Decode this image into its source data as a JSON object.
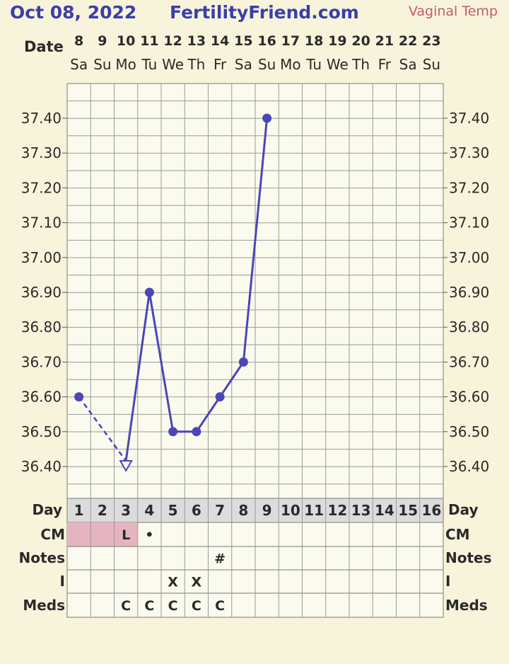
{
  "header": {
    "date": "Oct 08, 2022",
    "site": "FertilityFriend.com",
    "mode": "Vaginal Temp"
  },
  "labels": {
    "date_title": "Date",
    "day": "Day",
    "cm": "CM",
    "notes": "Notes",
    "intercourse": "I",
    "meds": "Meds"
  },
  "colors": {
    "line": "#4a46b8",
    "cm_shade": "#e6b4c0",
    "grid_bg": "#fbfaee",
    "row_bg": "#fbfaee"
  },
  "chart_data": {
    "type": "line",
    "y_ticks": [
      "37.40",
      "37.30",
      "37.20",
      "37.10",
      "37.00",
      "36.90",
      "36.80",
      "36.70",
      "36.60",
      "36.50",
      "36.40"
    ],
    "ylim": [
      36.3,
      37.5
    ],
    "dates": [
      "8",
      "9",
      "10",
      "11",
      "12",
      "13",
      "14",
      "15",
      "16",
      "17",
      "18",
      "19",
      "20",
      "21",
      "22",
      "23"
    ],
    "weekdays": [
      "Sa",
      "Su",
      "Mo",
      "Tu",
      "We",
      "Th",
      "Fr",
      "Sa",
      "Su",
      "Mo",
      "Tu",
      "We",
      "Th",
      "Fr",
      "Sa",
      "Su"
    ],
    "cycle_days": [
      "1",
      "2",
      "3",
      "4",
      "5",
      "6",
      "7",
      "8",
      "9",
      "10",
      "11",
      "12",
      "13",
      "14",
      "15",
      "16"
    ],
    "temps": [
      36.6,
      null,
      36.4,
      36.9,
      36.5,
      36.5,
      36.6,
      36.7,
      37.4,
      null,
      null,
      null,
      null,
      null,
      null,
      null
    ],
    "discarded_days": [
      3
    ],
    "cm": [
      "",
      "",
      "L",
      "•",
      "",
      "",
      "",
      "",
      "",
      "",
      "",
      "",
      "",
      "",
      "",
      ""
    ],
    "cm_shaded_days": [
      1,
      2,
      3
    ],
    "notes": [
      "",
      "",
      "",
      "",
      "",
      "",
      "#",
      "",
      "",
      "",
      "",
      "",
      "",
      "",
      "",
      ""
    ],
    "intercourse": [
      "",
      "",
      "",
      "",
      "X",
      "X",
      "",
      "",
      "",
      "",
      "",
      "",
      "",
      "",
      "",
      ""
    ],
    "meds": [
      "",
      "",
      "C",
      "C",
      "C",
      "C",
      "C",
      "",
      "",
      "",
      "",
      "",
      "",
      "",
      "",
      ""
    ]
  }
}
